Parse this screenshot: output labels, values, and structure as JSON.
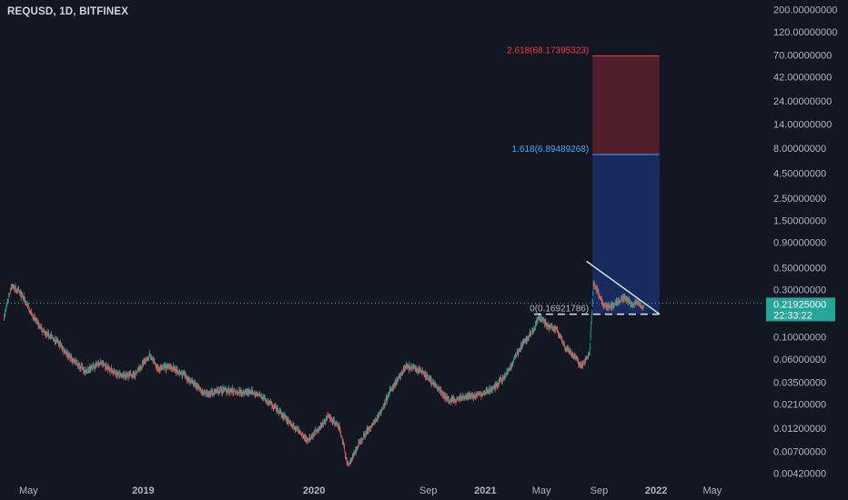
{
  "symbol": "REQUSD, 1D, BITFINEX",
  "colors": {
    "background": "#131722",
    "up": "#26a69a",
    "down": "#ef5350",
    "price_label_bg": "#26a69a",
    "fib_top": "#f23645",
    "fib_mid": "#42a5f5",
    "fib_zero": "#b2b5be"
  },
  "chart_data": {
    "type": "candlestick",
    "y_scale": "log",
    "ylim": [
      0.0036,
      250
    ],
    "y_ticks": [
      "200.00000000",
      "120.00000000",
      "70.00000000",
      "42.00000000",
      "24.00000000",
      "14.00000000",
      "8.00000000",
      "4.50000000",
      "2.50000000",
      "1.50000000",
      "0.90000000",
      "0.50000000",
      "0.30000000",
      "0.10000000",
      "0.06000000",
      "0.03500000",
      "0.02100000",
      "0.01200000",
      "0.00700000",
      "0.00420000"
    ],
    "x_ticks": [
      "May",
      "2019",
      "2020",
      "Sep",
      "2021",
      "May",
      "Sep",
      "2022",
      "May"
    ],
    "x_tick_dates": [
      "2018-05-01",
      "2019-01-01",
      "2020-01-01",
      "2020-09-01",
      "2021-01-01",
      "2021-05-01",
      "2021-09-01",
      "2022-01-01",
      "2022-05-01"
    ],
    "x_range": [
      "2018-03-01",
      "2022-08-20"
    ],
    "price_path": [
      [
        "2018-03-10",
        0.16
      ],
      [
        "2018-03-25",
        0.33
      ],
      [
        "2018-04-05",
        0.3
      ],
      [
        "2018-04-20",
        0.25
      ],
      [
        "2018-05-10",
        0.16
      ],
      [
        "2018-06-01",
        0.115
      ],
      [
        "2018-07-01",
        0.09
      ],
      [
        "2018-08-01",
        0.06
      ],
      [
        "2018-09-01",
        0.045
      ],
      [
        "2018-10-01",
        0.055
      ],
      [
        "2018-11-15",
        0.04
      ],
      [
        "2018-12-15",
        0.042
      ],
      [
        "2019-01-15",
        0.065
      ],
      [
        "2019-02-01",
        0.048
      ],
      [
        "2019-03-01",
        0.05
      ],
      [
        "2019-04-01",
        0.04
      ],
      [
        "2019-05-15",
        0.026
      ],
      [
        "2019-06-15",
        0.029
      ],
      [
        "2019-08-01",
        0.028
      ],
      [
        "2019-09-01",
        0.027
      ],
      [
        "2019-10-01",
        0.021
      ],
      [
        "2019-11-15",
        0.013
      ],
      [
        "2019-12-20",
        0.009
      ],
      [
        "2020-02-01",
        0.016
      ],
      [
        "2020-02-25",
        0.012
      ],
      [
        "2020-03-13",
        0.005
      ],
      [
        "2020-04-15",
        0.01
      ],
      [
        "2020-05-15",
        0.015
      ],
      [
        "2020-06-15",
        0.03
      ],
      [
        "2020-07-15",
        0.05
      ],
      [
        "2020-08-15",
        0.046
      ],
      [
        "2020-09-15",
        0.033
      ],
      [
        "2020-10-15",
        0.023
      ],
      [
        "2020-11-15",
        0.024
      ],
      [
        "2020-12-15",
        0.026
      ],
      [
        "2021-01-15",
        0.029
      ],
      [
        "2021-02-15",
        0.042
      ],
      [
        "2021-03-15",
        0.075
      ],
      [
        "2021-04-15",
        0.12
      ],
      [
        "2021-04-25",
        0.16
      ],
      [
        "2021-05-15",
        0.13
      ],
      [
        "2021-06-01",
        0.12
      ],
      [
        "2021-06-20",
        0.08
      ],
      [
        "2021-07-15",
        0.06
      ],
      [
        "2021-07-25",
        0.05
      ],
      [
        "2021-08-12",
        0.07
      ],
      [
        "2021-08-20",
        0.35
      ],
      [
        "2021-08-28",
        0.3
      ],
      [
        "2021-09-10",
        0.21
      ],
      [
        "2021-09-25",
        0.2
      ],
      [
        "2021-10-10",
        0.22
      ],
      [
        "2021-10-25",
        0.25
      ],
      [
        "2021-11-10",
        0.21
      ],
      [
        "2021-11-20",
        0.22
      ],
      [
        "2021-12-05",
        0.2
      ]
    ],
    "current_price": 0.21925,
    "current_price_label": "0.21925000",
    "countdown_label": "22:33:22",
    "fibonacci": {
      "date_start": "2021-08-18",
      "date_end": "2022-01-08",
      "levels": [
        {
          "ratio": 2.618,
          "price": 68.17395323,
          "label": "2.618(68.17395323)"
        },
        {
          "ratio": 1.618,
          "price": 6.89489268,
          "label": "1.618(6.89489268)"
        },
        {
          "ratio": 0,
          "price": 0.16921786,
          "label": "0(0.16921786)"
        }
      ]
    },
    "trendline": {
      "start": [
        "2021-08-05",
        0.58
      ],
      "end": [
        "2022-01-08",
        0.17
      ]
    },
    "support_line": {
      "start": [
        "2021-04-15",
        0.16921786
      ],
      "end": [
        "2022-01-08",
        0.16921786
      ]
    }
  }
}
